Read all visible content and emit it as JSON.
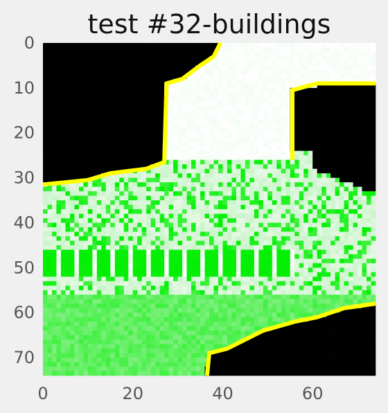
{
  "chart_data": {
    "type": "heatmap",
    "title": "test #32-buildings",
    "xlabel": "",
    "ylabel": "",
    "x_range": [
      0,
      74
    ],
    "y_range": [
      0,
      74
    ],
    "y_inverted": true,
    "grid": false,
    "x_ticks": [
      "0",
      "20",
      "40",
      "60"
    ],
    "y_ticks": [
      "0",
      "10",
      "20",
      "30",
      "40",
      "50",
      "60",
      "70"
    ],
    "colors": {
      "background": "#f0f0f0",
      "sky": "#000000",
      "outline": "#ffff00",
      "building_strong": "#00f000",
      "building_light": "#e6f8e6",
      "ground": "#7ff07f"
    }
  }
}
